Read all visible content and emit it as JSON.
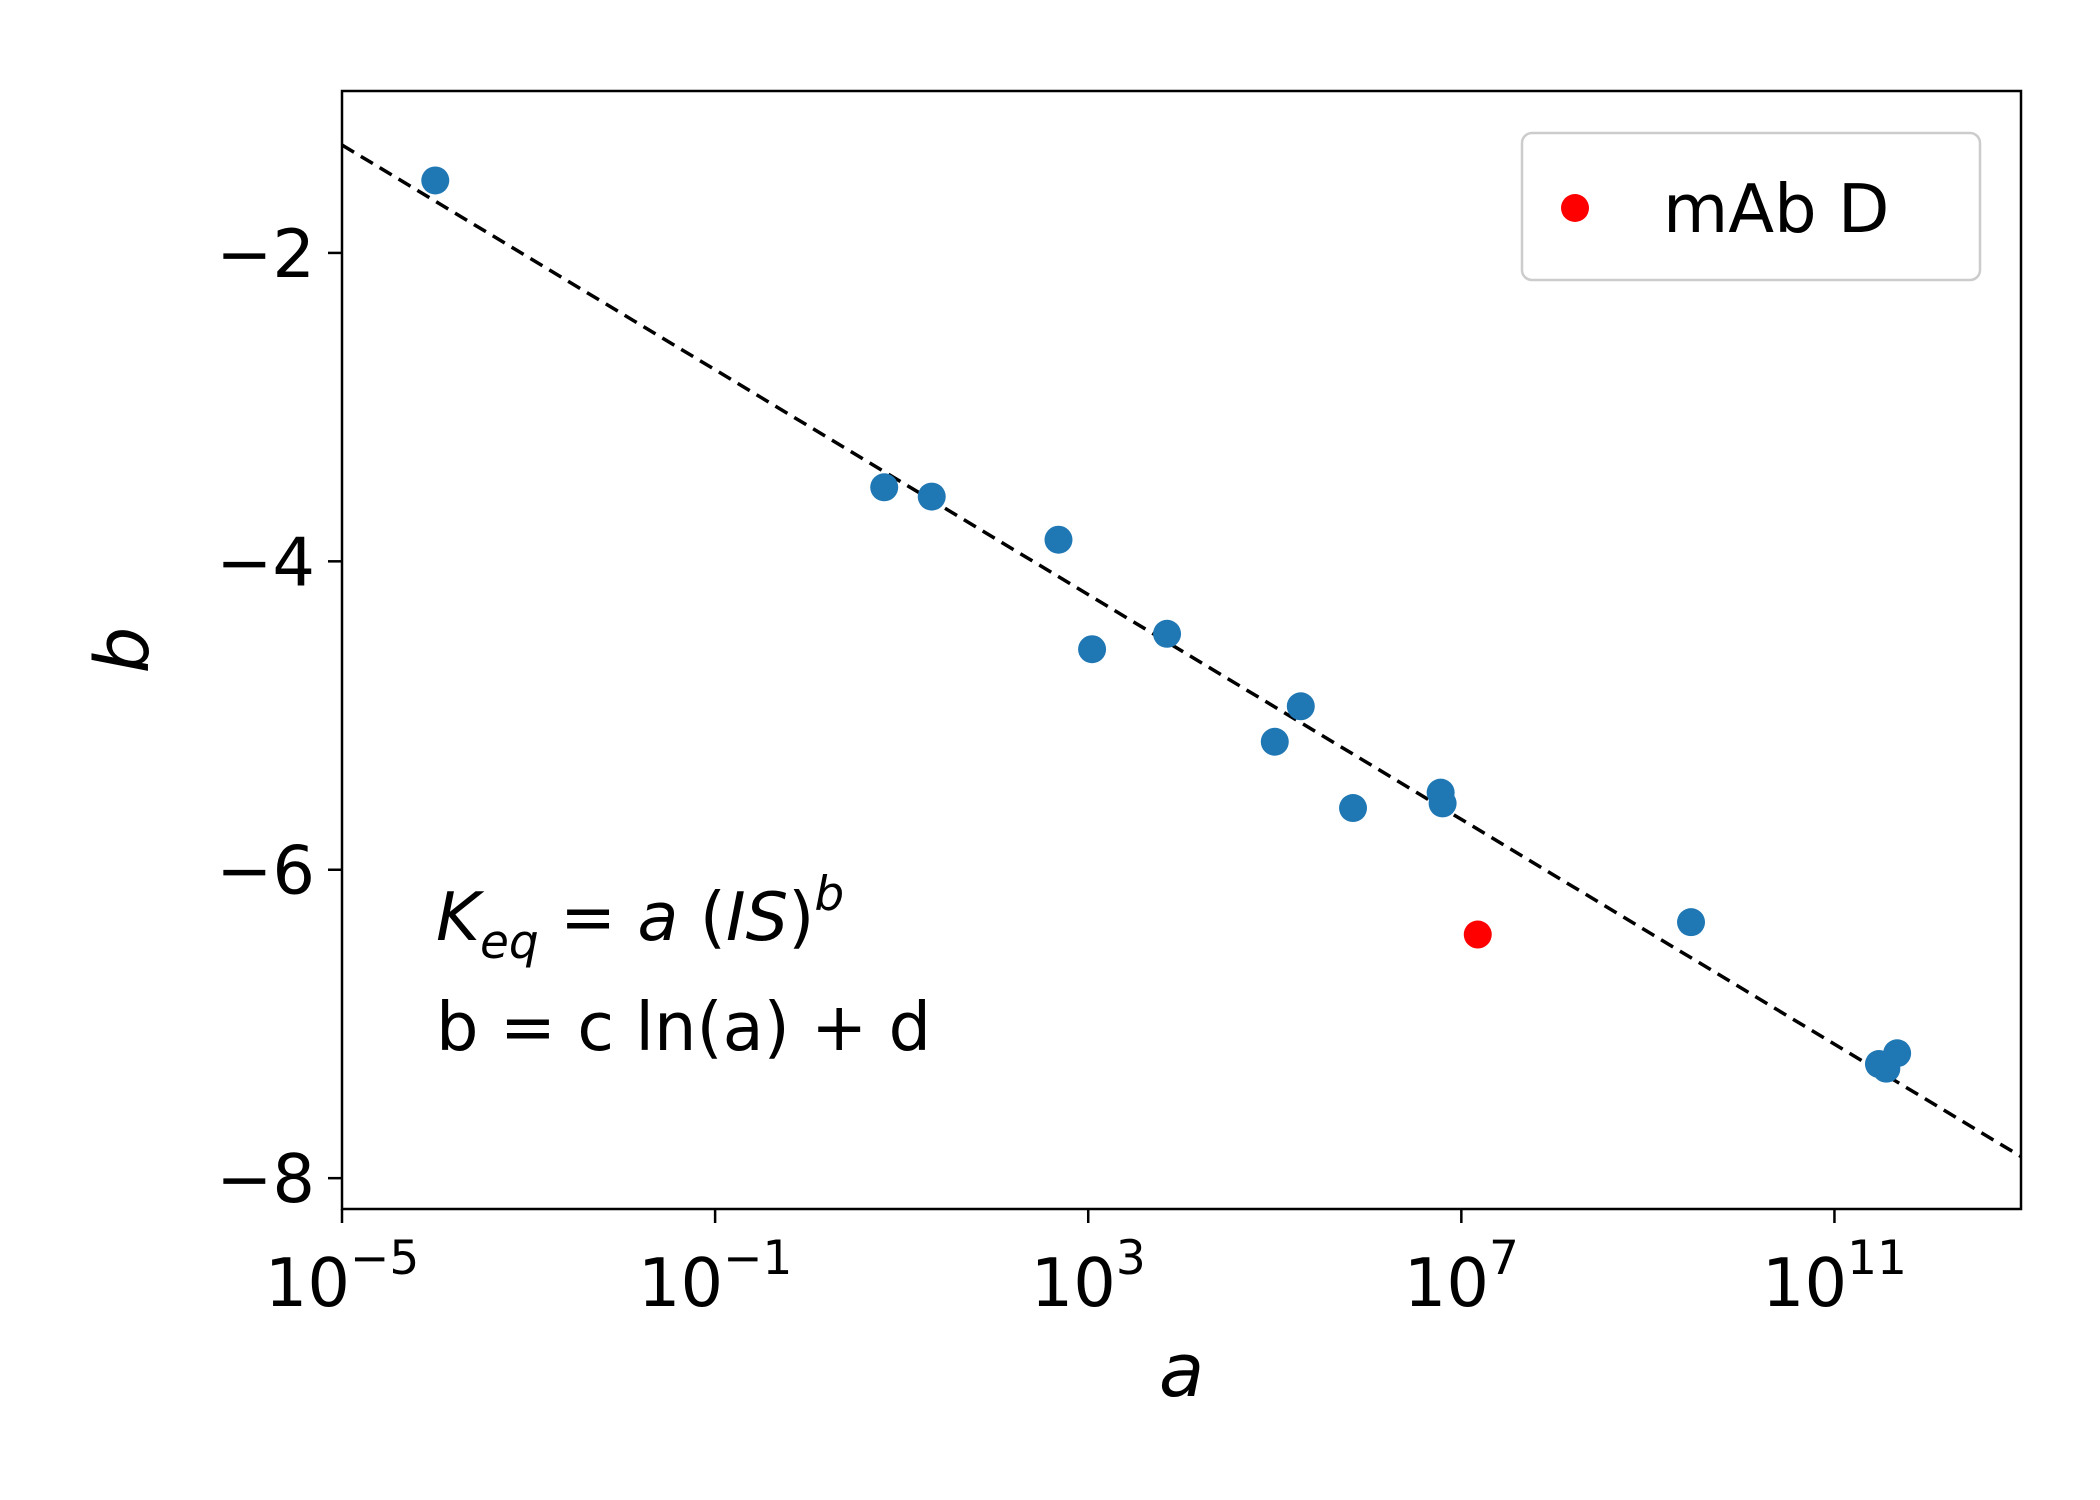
{
  "chart_data": {
    "type": "scatter",
    "title": "",
    "xlabel": "a",
    "ylabel": "b",
    "xscale": "log",
    "xlim_exponent": [
      -5,
      13
    ],
    "ylim": [
      -8.2,
      -0.95
    ],
    "x_ticks": [
      {
        "base": "10",
        "exponent": "−5",
        "power": -5
      },
      {
        "base": "10",
        "exponent": "−1",
        "power": -1
      },
      {
        "base": "10",
        "exponent": "3",
        "power": 3
      },
      {
        "base": "10",
        "exponent": "7",
        "power": 7
      },
      {
        "base": "10",
        "exponent": "11",
        "power": 11
      }
    ],
    "y_ticks": [
      {
        "label": "−2",
        "value": -2
      },
      {
        "label": "−4",
        "value": -4
      },
      {
        "label": "−6",
        "value": -6
      },
      {
        "label": "−8",
        "value": -8
      }
    ],
    "grid": false,
    "legend": {
      "placement": "top-right",
      "entries": [
        {
          "label": "mAb D",
          "color": "#ff0000"
        }
      ]
    },
    "colors": {
      "points": "#1f77b4",
      "highlight": "#ff0000",
      "fit_line": "#000000"
    },
    "series": [
      {
        "name": "",
        "color": "#1f77b4",
        "points": [
          {
            "x": 0.0001,
            "y": -1.53
          },
          {
            "x": 6.5,
            "y": -3.52
          },
          {
            "x": 21,
            "y": -3.58
          },
          {
            "x": 480,
            "y": -3.86
          },
          {
            "x": 1100,
            "y": -4.57
          },
          {
            "x": 7000,
            "y": -4.47
          },
          {
            "x": 100000,
            "y": -5.17
          },
          {
            "x": 190000,
            "y": -4.94
          },
          {
            "x": 690000,
            "y": -5.6
          },
          {
            "x": 6000000,
            "y": -5.5
          },
          {
            "x": 6300000,
            "y": -5.57
          },
          {
            "x": 2900000000,
            "y": -6.34
          },
          {
            "x": 300000000000,
            "y": -7.26
          },
          {
            "x": 360000000000,
            "y": -7.29
          },
          {
            "x": 470000000000,
            "y": -7.19
          }
        ]
      },
      {
        "name": "mAb D",
        "color": "#ff0000",
        "points": [
          {
            "x": 15000000,
            "y": -6.42
          }
        ]
      }
    ],
    "fit_line": {
      "style": "dashed",
      "color": "#000000",
      "points": [
        {
          "x": 1e-05,
          "y": -1.3
        },
        {
          "x": 10000000000000,
          "y": -7.86
        }
      ]
    },
    "annotations": {
      "line1": {
        "k": "K",
        "sub": "eq",
        "rest1": " = ",
        "a": "a",
        "rest2": " (",
        "is": "IS",
        "rest3": ")",
        "sup": "b"
      },
      "line2": "b = c ln(a) + d"
    }
  }
}
